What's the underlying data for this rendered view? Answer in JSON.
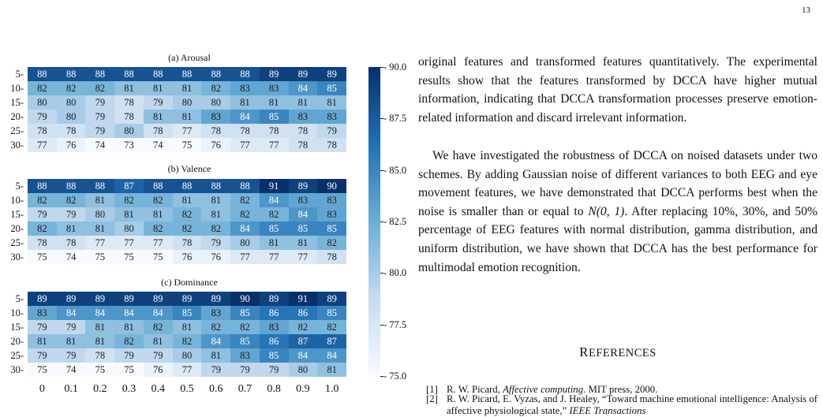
{
  "page_number": "13",
  "chart_data": [
    {
      "type": "heatmap",
      "title": "(a) Arousal",
      "row_labels": [
        "5",
        "10",
        "15",
        "20",
        "25",
        "30"
      ],
      "col_labels": [
        "0",
        "0.1",
        "0.2",
        "0.3",
        "0.4",
        "0.5",
        "0.6",
        "0.7",
        "0.8",
        "0.9",
        "1.0"
      ],
      "values": [
        [
          88,
          88,
          88,
          88,
          88,
          88,
          88,
          88,
          89,
          89,
          89
        ],
        [
          82,
          82,
          82,
          81,
          81,
          81,
          82,
          83,
          83,
          84,
          85
        ],
        [
          80,
          80,
          79,
          78,
          79,
          80,
          80,
          81,
          81,
          81,
          81
        ],
        [
          79,
          80,
          79,
          78,
          81,
          81,
          83,
          84,
          85,
          83,
          83
        ],
        [
          78,
          78,
          79,
          80,
          78,
          77,
          78,
          78,
          78,
          78,
          79
        ],
        [
          77,
          76,
          74,
          73,
          74,
          75,
          76,
          77,
          77,
          78,
          78
        ]
      ]
    },
    {
      "type": "heatmap",
      "title": "(b) Valence",
      "row_labels": [
        "5",
        "10",
        "15",
        "20",
        "25",
        "30"
      ],
      "col_labels": [
        "0",
        "0.1",
        "0.2",
        "0.3",
        "0.4",
        "0.5",
        "0.6",
        "0.7",
        "0.8",
        "0.9",
        "1.0"
      ],
      "values": [
        [
          88,
          88,
          88,
          87,
          88,
          88,
          88,
          88,
          91,
          89,
          90
        ],
        [
          82,
          82,
          81,
          82,
          82,
          81,
          81,
          82,
          84,
          83,
          83
        ],
        [
          79,
          79,
          80,
          81,
          81,
          82,
          81,
          82,
          82,
          84,
          83
        ],
        [
          82,
          81,
          81,
          80,
          82,
          82,
          82,
          84,
          85,
          85,
          85
        ],
        [
          78,
          78,
          77,
          77,
          77,
          78,
          79,
          80,
          81,
          81,
          82
        ],
        [
          75,
          74,
          75,
          75,
          75,
          76,
          76,
          77,
          77,
          77,
          78
        ]
      ]
    },
    {
      "type": "heatmap",
      "title": "(c) Dominance",
      "row_labels": [
        "5",
        "10",
        "15",
        "20",
        "25",
        "30"
      ],
      "col_labels": [
        "0",
        "0.1",
        "0.2",
        "0.3",
        "0.4",
        "0.5",
        "0.6",
        "0.7",
        "0.8",
        "0.9",
        "1.0"
      ],
      "values": [
        [
          89,
          89,
          89,
          89,
          89,
          89,
          89,
          90,
          89,
          91,
          89
        ],
        [
          83,
          84,
          84,
          84,
          84,
          85,
          83,
          85,
          86,
          86,
          85
        ],
        [
          79,
          79,
          81,
          81,
          82,
          81,
          82,
          82,
          83,
          82,
          82
        ],
        [
          81,
          81,
          81,
          82,
          81,
          82,
          84,
          85,
          86,
          87,
          87
        ],
        [
          79,
          79,
          78,
          79,
          79,
          80,
          81,
          83,
          85,
          84,
          84
        ],
        [
          75,
          74,
          75,
          75,
          76,
          77,
          79,
          79,
          79,
          80,
          81
        ]
      ]
    }
  ],
  "colorbar": {
    "min": 75.0,
    "max": 90.0,
    "ticks": [
      "90.0",
      "87.5",
      "85.0",
      "82.5",
      "80.0",
      "77.5",
      "75.0"
    ],
    "colormap": [
      "#f7fbff",
      "#c6dbef",
      "#6baed6",
      "#2171b5",
      "#08306b"
    ]
  },
  "text": {
    "para1": "original features and transformed features quantitatively. The experimental results show that the features transformed by DCCA have higher mutual information, indicating that DCCA transformation processes preserve emotion-related information and discard irrelevant information.",
    "para2_a": "We have investigated the robustness of DCCA on noised datasets under two schemes. By adding Gaussian noise of different variances to both EEG and eye movement features, we have demonstrated that DCCA performs best when the noise is smaller than or equal to ",
    "para2_math": "N(0, 1)",
    "para2_b": ". After replacing 10%, 30%, and 50% percentage of EEG features with normal distribution, gamma distribution, and uniform distribution, we have shown that DCCA has the best performance for multimodal emotion recognition.",
    "references_heading_first": "R",
    "references_heading_rest": "EFERENCES",
    "ref1_num": "[1]",
    "ref1_a": "R. W. Picard, ",
    "ref1_italic": "Affective computing",
    "ref1_b": ".   MIT press, 2000.",
    "ref2_num": "[2]",
    "ref2_a": "R. W. Picard, E. Vyzas, and J. Healey, “Toward machine emotional intelligence: Analysis of affective physiological state,” ",
    "ref2_italic": "IEEE Transactions"
  }
}
